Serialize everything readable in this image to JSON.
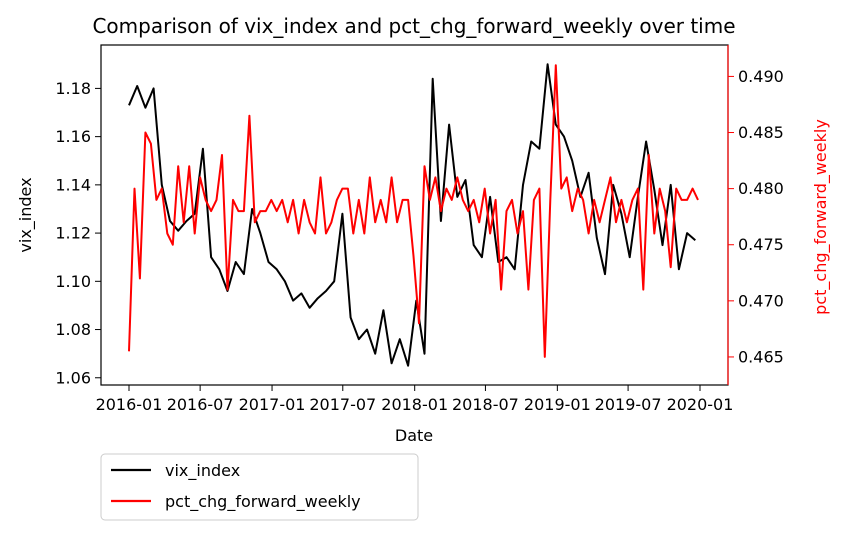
{
  "chart_data": {
    "type": "line",
    "title": "Comparison of vix_index and pct_chg_forward_weekly over time",
    "xlabel": "Date",
    "ylabel_left": "vix_index",
    "ylabel_right": "pct_chg_forward_weekly",
    "xlim": [
      "2016-01-01",
      "2020-01-01"
    ],
    "ylim_left": [
      1.057,
      1.198
    ],
    "ylim_right": [
      0.4625,
      0.4928
    ],
    "x_ticks": [
      "2016-01",
      "2016-07",
      "2017-01",
      "2017-07",
      "2018-01",
      "2018-07",
      "2019-01",
      "2019-07",
      "2020-01"
    ],
    "y_ticks_left": [
      "1.06",
      "1.08",
      "1.10",
      "1.12",
      "1.14",
      "1.16",
      "1.18"
    ],
    "y_ticks_right": [
      "0.465",
      "0.470",
      "0.475",
      "0.480",
      "0.485",
      "0.490"
    ],
    "grid": false,
    "legend_position": "below-left",
    "series": [
      {
        "name": "vix_index",
        "axis": "left",
        "color": "#000000",
        "x": [
          "2016-01-01",
          "2016-01-22",
          "2016-02-12",
          "2016-03-04",
          "2016-03-25",
          "2016-04-15",
          "2016-05-06",
          "2016-05-27",
          "2016-06-17",
          "2016-07-08",
          "2016-07-29",
          "2016-08-19",
          "2016-09-09",
          "2016-09-30",
          "2016-10-21",
          "2016-11-11",
          "2016-12-02",
          "2016-12-23",
          "2017-01-13",
          "2017-02-03",
          "2017-02-24",
          "2017-03-17",
          "2017-04-07",
          "2017-04-28",
          "2017-05-19",
          "2017-06-09",
          "2017-06-30",
          "2017-07-21",
          "2017-08-11",
          "2017-09-01",
          "2017-09-22",
          "2017-10-13",
          "2017-11-03",
          "2017-11-24",
          "2017-12-15",
          "2018-01-05",
          "2018-01-26",
          "2018-02-16",
          "2018-03-09",
          "2018-03-30",
          "2018-04-20",
          "2018-05-11",
          "2018-06-01",
          "2018-06-22",
          "2018-07-13",
          "2018-08-03",
          "2018-08-24",
          "2018-09-14",
          "2018-10-05",
          "2018-10-26",
          "2018-11-16",
          "2018-12-07",
          "2018-12-28",
          "2019-01-18",
          "2019-02-08",
          "2019-03-01",
          "2019-03-22",
          "2019-04-12",
          "2019-05-03",
          "2019-05-24",
          "2019-06-14",
          "2019-07-05",
          "2019-07-26",
          "2019-08-16",
          "2019-09-06",
          "2019-09-27",
          "2019-10-18",
          "2019-11-08",
          "2019-11-29",
          "2019-12-20"
        ],
        "y": [
          1.173,
          1.181,
          1.172,
          1.18,
          1.14,
          1.125,
          1.121,
          1.125,
          1.128,
          1.155,
          1.11,
          1.105,
          1.096,
          1.108,
          1.103,
          1.13,
          1.12,
          1.108,
          1.105,
          1.1,
          1.092,
          1.095,
          1.089,
          1.093,
          1.096,
          1.1,
          1.128,
          1.085,
          1.076,
          1.08,
          1.07,
          1.088,
          1.066,
          1.076,
          1.065,
          1.092,
          1.07,
          1.184,
          1.125,
          1.165,
          1.135,
          1.142,
          1.115,
          1.11,
          1.135,
          1.108,
          1.11,
          1.105,
          1.14,
          1.158,
          1.155,
          1.19,
          1.165,
          1.16,
          1.15,
          1.135,
          1.145,
          1.118,
          1.103,
          1.14,
          1.128,
          1.11,
          1.135,
          1.158,
          1.138,
          1.115,
          1.14,
          1.105,
          1.12,
          1.117
        ]
      },
      {
        "name": "pct_chg_forward_weekly",
        "axis": "right",
        "color": "#ff0000",
        "x": [
          "2016-01-01",
          "2016-01-15",
          "2016-01-29",
          "2016-02-12",
          "2016-02-26",
          "2016-03-11",
          "2016-03-25",
          "2016-04-08",
          "2016-04-22",
          "2016-05-06",
          "2016-05-20",
          "2016-06-03",
          "2016-06-17",
          "2016-07-01",
          "2016-07-15",
          "2016-07-29",
          "2016-08-12",
          "2016-08-26",
          "2016-09-09",
          "2016-09-23",
          "2016-10-07",
          "2016-10-21",
          "2016-11-04",
          "2016-11-18",
          "2016-12-02",
          "2016-12-16",
          "2016-12-30",
          "2017-01-13",
          "2017-01-27",
          "2017-02-10",
          "2017-02-24",
          "2017-03-10",
          "2017-03-24",
          "2017-04-07",
          "2017-04-21",
          "2017-05-05",
          "2017-05-19",
          "2017-06-02",
          "2017-06-16",
          "2017-06-30",
          "2017-07-14",
          "2017-07-28",
          "2017-08-11",
          "2017-08-25",
          "2017-09-08",
          "2017-09-22",
          "2017-10-06",
          "2017-10-20",
          "2017-11-03",
          "2017-11-17",
          "2017-12-01",
          "2017-12-15",
          "2017-12-29",
          "2018-01-12",
          "2018-01-26",
          "2018-02-09",
          "2018-02-23",
          "2018-03-09",
          "2018-03-23",
          "2018-04-06",
          "2018-04-20",
          "2018-05-04",
          "2018-05-18",
          "2018-06-01",
          "2018-06-15",
          "2018-06-29",
          "2018-07-13",
          "2018-07-27",
          "2018-08-10",
          "2018-08-24",
          "2018-09-07",
          "2018-09-21",
          "2018-10-05",
          "2018-10-19",
          "2018-11-02",
          "2018-11-16",
          "2018-11-30",
          "2018-12-14",
          "2018-12-28",
          "2019-01-11",
          "2019-01-25",
          "2019-02-08",
          "2019-02-22",
          "2019-03-08",
          "2019-03-22",
          "2019-04-05",
          "2019-04-19",
          "2019-05-03",
          "2019-05-17",
          "2019-05-31",
          "2019-06-14",
          "2019-06-28",
          "2019-07-12",
          "2019-07-26",
          "2019-08-09",
          "2019-08-23",
          "2019-09-06",
          "2019-09-20",
          "2019-10-04",
          "2019-10-18",
          "2019-11-01",
          "2019-11-15",
          "2019-11-29",
          "2019-12-13",
          "2019-12-27"
        ],
        "y": [
          0.4655,
          0.48,
          0.472,
          0.485,
          0.484,
          0.479,
          0.48,
          0.476,
          0.475,
          0.482,
          0.477,
          0.482,
          0.476,
          0.481,
          0.479,
          0.478,
          0.479,
          0.483,
          0.471,
          0.479,
          0.478,
          0.478,
          0.4865,
          0.477,
          0.478,
          0.478,
          0.479,
          0.478,
          0.479,
          0.477,
          0.479,
          0.476,
          0.479,
          0.477,
          0.476,
          0.481,
          0.476,
          0.477,
          0.479,
          0.48,
          0.48,
          0.476,
          0.479,
          0.476,
          0.481,
          0.477,
          0.479,
          0.477,
          0.481,
          0.477,
          0.479,
          0.479,
          0.474,
          0.468,
          0.482,
          0.479,
          0.481,
          0.478,
          0.48,
          0.479,
          0.481,
          0.479,
          0.478,
          0.479,
          0.477,
          0.48,
          0.476,
          0.479,
          0.471,
          0.478,
          0.479,
          0.476,
          0.478,
          0.471,
          0.479,
          0.48,
          0.465,
          0.479,
          0.491,
          0.48,
          0.481,
          0.478,
          0.48,
          0.479,
          0.476,
          0.479,
          0.477,
          0.479,
          0.481,
          0.477,
          0.479,
          0.477,
          0.479,
          0.48,
          0.471,
          0.483,
          0.476,
          0.48,
          0.478,
          0.473,
          0.48,
          0.479,
          0.479,
          0.48,
          0.479
        ]
      }
    ]
  }
}
